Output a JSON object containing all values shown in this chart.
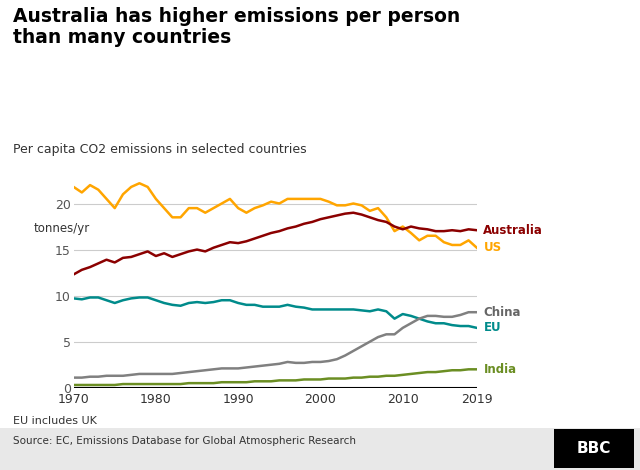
{
  "title": "Australia has higher emissions per person\nthan many countries",
  "subtitle": "Per capita CO2 emissions in selected countries",
  "ylabel": "tonnes/yr",
  "footnote": "EU includes UK",
  "source": "Source: EC, Emissions Database for Global Atmospheric Research",
  "xlim": [
    1970,
    2019
  ],
  "ylim": [
    0,
    25
  ],
  "yticks": [
    0,
    5,
    10,
    15,
    20
  ],
  "xticks": [
    1970,
    1980,
    1990,
    2000,
    2010,
    2019
  ],
  "background_color": "#ffffff",
  "series": {
    "Australia": {
      "color": "#8B0000",
      "label_color": "#8B0000",
      "years": [
        1970,
        1971,
        1972,
        1973,
        1974,
        1975,
        1976,
        1977,
        1978,
        1979,
        1980,
        1981,
        1982,
        1983,
        1984,
        1985,
        1986,
        1987,
        1988,
        1989,
        1990,
        1991,
        1992,
        1993,
        1994,
        1995,
        1996,
        1997,
        1998,
        1999,
        2000,
        2001,
        2002,
        2003,
        2004,
        2005,
        2006,
        2007,
        2008,
        2009,
        2010,
        2011,
        2012,
        2013,
        2014,
        2015,
        2016,
        2017,
        2018,
        2019
      ],
      "values": [
        12.3,
        12.8,
        13.1,
        13.5,
        13.9,
        13.6,
        14.1,
        14.2,
        14.5,
        14.8,
        14.3,
        14.6,
        14.2,
        14.5,
        14.8,
        15.0,
        14.8,
        15.2,
        15.5,
        15.8,
        15.7,
        15.9,
        16.2,
        16.5,
        16.8,
        17.0,
        17.3,
        17.5,
        17.8,
        18.0,
        18.3,
        18.5,
        18.7,
        18.9,
        19.0,
        18.8,
        18.5,
        18.2,
        18.0,
        17.5,
        17.2,
        17.5,
        17.3,
        17.2,
        17.0,
        17.0,
        17.1,
        17.0,
        17.2,
        17.1
      ]
    },
    "US": {
      "color": "#FFA500",
      "label_color": "#FFA500",
      "years": [
        1970,
        1971,
        1972,
        1973,
        1974,
        1975,
        1976,
        1977,
        1978,
        1979,
        1980,
        1981,
        1982,
        1983,
        1984,
        1985,
        1986,
        1987,
        1988,
        1989,
        1990,
        1991,
        1992,
        1993,
        1994,
        1995,
        1996,
        1997,
        1998,
        1999,
        2000,
        2001,
        2002,
        2003,
        2004,
        2005,
        2006,
        2007,
        2008,
        2009,
        2010,
        2011,
        2012,
        2013,
        2014,
        2015,
        2016,
        2017,
        2018,
        2019
      ],
      "values": [
        21.8,
        21.2,
        22.0,
        21.5,
        20.5,
        19.5,
        21.0,
        21.8,
        22.2,
        21.8,
        20.5,
        19.5,
        18.5,
        18.5,
        19.5,
        19.5,
        19.0,
        19.5,
        20.0,
        20.5,
        19.5,
        19.0,
        19.5,
        19.8,
        20.2,
        20.0,
        20.5,
        20.5,
        20.5,
        20.5,
        20.5,
        20.2,
        19.8,
        19.8,
        20.0,
        19.8,
        19.2,
        19.5,
        18.5,
        17.0,
        17.5,
        16.8,
        16.0,
        16.5,
        16.5,
        15.8,
        15.5,
        15.5,
        16.0,
        15.2
      ]
    },
    "EU": {
      "color": "#008B8B",
      "label_color": "#008B8B",
      "years": [
        1970,
        1971,
        1972,
        1973,
        1974,
        1975,
        1976,
        1977,
        1978,
        1979,
        1980,
        1981,
        1982,
        1983,
        1984,
        1985,
        1986,
        1987,
        1988,
        1989,
        1990,
        1991,
        1992,
        1993,
        1994,
        1995,
        1996,
        1997,
        1998,
        1999,
        2000,
        2001,
        2002,
        2003,
        2004,
        2005,
        2006,
        2007,
        2008,
        2009,
        2010,
        2011,
        2012,
        2013,
        2014,
        2015,
        2016,
        2017,
        2018,
        2019
      ],
      "values": [
        9.7,
        9.6,
        9.8,
        9.8,
        9.5,
        9.2,
        9.5,
        9.7,
        9.8,
        9.8,
        9.5,
        9.2,
        9.0,
        8.9,
        9.2,
        9.3,
        9.2,
        9.3,
        9.5,
        9.5,
        9.2,
        9.0,
        9.0,
        8.8,
        8.8,
        8.8,
        9.0,
        8.8,
        8.7,
        8.5,
        8.5,
        8.5,
        8.5,
        8.5,
        8.5,
        8.4,
        8.3,
        8.5,
        8.3,
        7.5,
        8.0,
        7.8,
        7.5,
        7.2,
        7.0,
        7.0,
        6.8,
        6.7,
        6.7,
        6.5
      ]
    },
    "China": {
      "color": "#808080",
      "label_color": "#666666",
      "years": [
        1970,
        1971,
        1972,
        1973,
        1974,
        1975,
        1976,
        1977,
        1978,
        1979,
        1980,
        1981,
        1982,
        1983,
        1984,
        1985,
        1986,
        1987,
        1988,
        1989,
        1990,
        1991,
        1992,
        1993,
        1994,
        1995,
        1996,
        1997,
        1998,
        1999,
        2000,
        2001,
        2002,
        2003,
        2004,
        2005,
        2006,
        2007,
        2008,
        2009,
        2010,
        2011,
        2012,
        2013,
        2014,
        2015,
        2016,
        2017,
        2018,
        2019
      ],
      "values": [
        1.1,
        1.1,
        1.2,
        1.2,
        1.3,
        1.3,
        1.3,
        1.4,
        1.5,
        1.5,
        1.5,
        1.5,
        1.5,
        1.6,
        1.7,
        1.8,
        1.9,
        2.0,
        2.1,
        2.1,
        2.1,
        2.2,
        2.3,
        2.4,
        2.5,
        2.6,
        2.8,
        2.7,
        2.7,
        2.8,
        2.8,
        2.9,
        3.1,
        3.5,
        4.0,
        4.5,
        5.0,
        5.5,
        5.8,
        5.8,
        6.5,
        7.0,
        7.5,
        7.8,
        7.8,
        7.7,
        7.7,
        7.9,
        8.2,
        8.2
      ]
    },
    "India": {
      "color": "#6B8E23",
      "label_color": "#6B8E23",
      "years": [
        1970,
        1971,
        1972,
        1973,
        1974,
        1975,
        1976,
        1977,
        1978,
        1979,
        1980,
        1981,
        1982,
        1983,
        1984,
        1985,
        1986,
        1987,
        1988,
        1989,
        1990,
        1991,
        1992,
        1993,
        1994,
        1995,
        1996,
        1997,
        1998,
        1999,
        2000,
        2001,
        2002,
        2003,
        2004,
        2005,
        2006,
        2007,
        2008,
        2009,
        2010,
        2011,
        2012,
        2013,
        2014,
        2015,
        2016,
        2017,
        2018,
        2019
      ],
      "values": [
        0.3,
        0.3,
        0.3,
        0.3,
        0.3,
        0.3,
        0.4,
        0.4,
        0.4,
        0.4,
        0.4,
        0.4,
        0.4,
        0.4,
        0.5,
        0.5,
        0.5,
        0.5,
        0.6,
        0.6,
        0.6,
        0.6,
        0.7,
        0.7,
        0.7,
        0.8,
        0.8,
        0.8,
        0.9,
        0.9,
        0.9,
        1.0,
        1.0,
        1.0,
        1.1,
        1.1,
        1.2,
        1.2,
        1.3,
        1.3,
        1.4,
        1.5,
        1.6,
        1.7,
        1.7,
        1.8,
        1.9,
        1.9,
        2.0,
        2.0
      ]
    }
  },
  "label_positions": {
    "Australia": {
      "y": 17.1
    },
    "US": {
      "y": 15.2
    },
    "China": {
      "y": 8.2
    },
    "EU": {
      "y": 6.5
    },
    "India": {
      "y": 2.0
    }
  }
}
